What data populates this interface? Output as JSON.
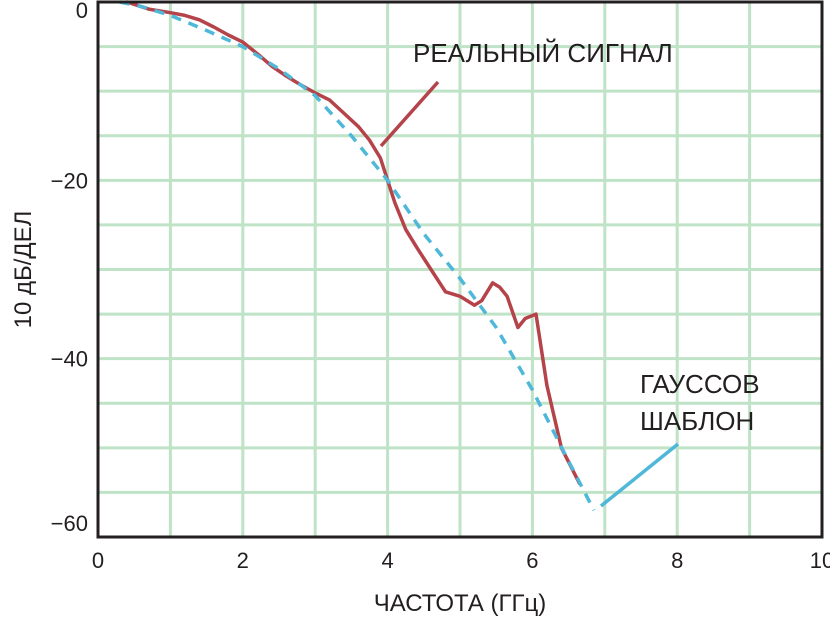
{
  "chart_data": {
    "type": "line",
    "title": "",
    "xlabel": "ЧАСТОТА (ГГц)",
    "ylabel": "10 дБ/ДЕЛ",
    "xlim": [
      0,
      10
    ],
    "ylim": [
      -60,
      0
    ],
    "x_ticks": [
      "0",
      "2",
      "4",
      "6",
      "8",
      "10"
    ],
    "y_ticks": [
      "0",
      "−20",
      "−40",
      "−60"
    ],
    "grid": true,
    "colors": {
      "grid": "#bfe3c6",
      "axis": "#231f20",
      "real": "#b5434a",
      "gauss": "#4fb8d9"
    },
    "series": [
      {
        "name": "РЕАЛЬНЫЙ СИГНАЛ",
        "style": "solid",
        "color": "#b5434a",
        "x": [
          0.4,
          0.7,
          1.0,
          1.2,
          1.4,
          1.6,
          1.8,
          2.0,
          2.2,
          2.4,
          2.6,
          2.8,
          3.0,
          3.2,
          3.4,
          3.6,
          3.75,
          3.9,
          4.0,
          4.1,
          4.25,
          4.4,
          4.6,
          4.8,
          5.0,
          5.2,
          5.3,
          5.45,
          5.55,
          5.65,
          5.8,
          5.9,
          6.05,
          6.2,
          6.4,
          6.65
        ],
        "y": [
          0,
          -0.8,
          -1.2,
          -1.5,
          -2.0,
          -2.8,
          -3.7,
          -4.5,
          -5.8,
          -7.2,
          -8.3,
          -9.3,
          -10.2,
          -11.0,
          -12.5,
          -14.0,
          -15.5,
          -17.5,
          -20.0,
          -22.5,
          -25.5,
          -27.5,
          -30.0,
          -32.5,
          -33.0,
          -34.0,
          -33.5,
          -31.5,
          -32.0,
          -33.0,
          -36.5,
          -35.5,
          -35.0,
          -43.0,
          -50.0,
          -54.0
        ]
      },
      {
        "name": "ГАУССОВ ШАБЛОН",
        "style": "dashed",
        "color": "#4fb8d9",
        "x": [
          0.3,
          0.6,
          1.0,
          1.5,
          2.0,
          2.5,
          3.0,
          3.5,
          4.0,
          4.5,
          5.0,
          5.5,
          6.0,
          6.5,
          6.85
        ],
        "y": [
          0,
          -0.5,
          -1.5,
          -3.2,
          -5.0,
          -7.5,
          -10.5,
          -15.0,
          -20.0,
          -26.0,
          -31.0,
          -36.5,
          -43.5,
          -51.5,
          -57.0
        ]
      }
    ],
    "annotations": [
      {
        "lines": [
          "РЕАЛЬНЫЙ СИГНАЛ"
        ],
        "series": 0
      },
      {
        "lines": [
          "ГАУССОВ",
          "ШАБЛОН"
        ],
        "series": 1
      }
    ]
  }
}
